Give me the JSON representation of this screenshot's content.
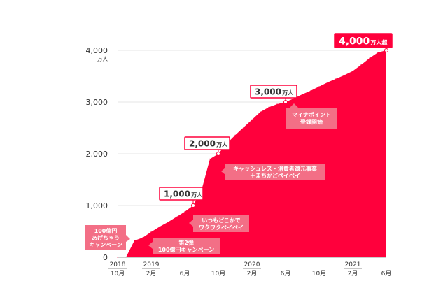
{
  "chart_data": {
    "type": "area",
    "title": "",
    "xlabel": "",
    "ylabel": "",
    "y_unit": "万人",
    "ylim": [
      0,
      4000
    ],
    "grid": true,
    "colors": {
      "area": "#ff003c",
      "milestone_border": "#ff003c",
      "milestone_text": "#333333",
      "milestone_fill_last": "#ff003c",
      "callout_fill": "#f36f86",
      "callout_text": "#ffffff",
      "axis_text": "#333333",
      "grid": "#e6e6e6"
    },
    "y_ticks": [
      {
        "value": 0,
        "label": "0"
      },
      {
        "value": 1000,
        "label": "1,000"
      },
      {
        "value": 2000,
        "label": "2,000"
      },
      {
        "value": 3000,
        "label": "3,000"
      },
      {
        "value": 4000,
        "label": "4,000",
        "sublabel": "万人"
      }
    ],
    "x_ticks": [
      {
        "index": 0,
        "year": "2018",
        "month": "10月"
      },
      {
        "index": 4,
        "year": "2019",
        "month": "2月"
      },
      {
        "index": 8,
        "year": "",
        "month": "6月"
      },
      {
        "index": 12,
        "year": "",
        "month": "10月"
      },
      {
        "index": 16,
        "year": "2020",
        "month": "2月"
      },
      {
        "index": 20,
        "year": "",
        "month": "6月"
      },
      {
        "index": 24,
        "year": "",
        "month": "10月"
      },
      {
        "index": 28,
        "year": "2021",
        "month": "2月"
      },
      {
        "index": 32,
        "year": "",
        "month": "6月"
      }
    ],
    "series": [
      {
        "x": [
          "2018-10",
          "2018-11",
          "2018-12",
          "2019-01",
          "2019-02",
          "2019-03",
          "2019-04",
          "2019-05",
          "2019-06",
          "2019-07",
          "2019-08",
          "2019-09",
          "2019-10",
          "2019-11",
          "2019-12",
          "2020-01",
          "2020-02",
          "2020-03",
          "2020-04",
          "2020-05",
          "2020-06",
          "2020-07",
          "2020-08",
          "2020-09",
          "2020-10",
          "2020-11",
          "2020-12",
          "2021-01",
          "2021-02",
          "2021-03",
          "2021-04",
          "2021-05",
          "2021-06"
        ],
        "values": [
          0,
          0,
          320,
          380,
          490,
          590,
          680,
          780,
          880,
          1000,
          1300,
          1900,
          2000,
          2200,
          2360,
          2510,
          2660,
          2810,
          2900,
          2960,
          3000,
          3070,
          3150,
          3220,
          3300,
          3380,
          3450,
          3520,
          3600,
          3720,
          3850,
          3960,
          4000
        ]
      }
    ],
    "milestones": [
      {
        "index": 9,
        "value": 1000,
        "number": "1,000",
        "unit": "万人",
        "filled": false
      },
      {
        "index": 12,
        "value": 2000,
        "number": "2,000",
        "unit": "万人",
        "filled": false
      },
      {
        "index": 20,
        "value": 3000,
        "number": "3,000",
        "unit": "万人",
        "filled": false
      },
      {
        "index": 32,
        "value": 4000,
        "number": "4,000",
        "unit": "万人超",
        "filled": true
      }
    ],
    "callouts": [
      {
        "id": "100oku-agechau",
        "lines": [
          "100億円",
          "あげちゃう",
          "キャンペーン"
        ],
        "target_index": 1.2,
        "side": "left"
      },
      {
        "id": "dai2dan",
        "lines": [
          "第2弾",
          "100億円キャンペーン"
        ],
        "target_index": 4.7,
        "side": "right"
      },
      {
        "id": "itsumo-dokoka",
        "lines": [
          "いつもどこかで",
          "ワクワクペイペイ"
        ],
        "target_index": 8.5,
        "side": "right"
      },
      {
        "id": "cashless",
        "lines": [
          "キャッシュレス・消費者還元事業",
          "＋まちかどペイペイ"
        ],
        "target_index": 12.0,
        "side": "right"
      },
      {
        "id": "mynapoint",
        "lines": [
          "マイナポイント",
          "登録開始"
        ],
        "target_index": 21.0,
        "side": "below"
      }
    ]
  }
}
